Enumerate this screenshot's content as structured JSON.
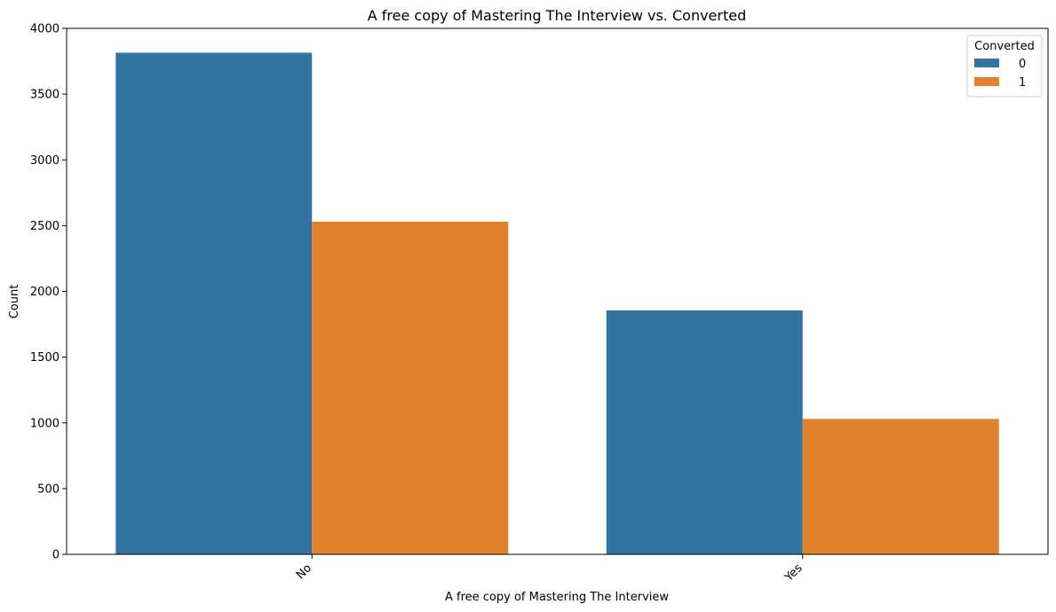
{
  "chart_data": {
    "type": "bar",
    "title": "A free copy of Mastering The Interview vs. Converted",
    "xlabel": "A free copy of Mastering The Interview",
    "ylabel": "Count",
    "categories": [
      "No",
      "Yes"
    ],
    "series": [
      {
        "name": "0",
        "values": [
          3815,
          1855
        ],
        "color": "#3274a1"
      },
      {
        "name": "1",
        "values": [
          2530,
          1030
        ],
        "color": "#e1812c"
      }
    ],
    "ylim": [
      0,
      4000
    ],
    "yticks": [
      0,
      500,
      1000,
      1500,
      2000,
      2500,
      3000,
      3500,
      4000
    ],
    "legend": {
      "title": "Converted",
      "placement": "top-right"
    },
    "grid": false
  }
}
